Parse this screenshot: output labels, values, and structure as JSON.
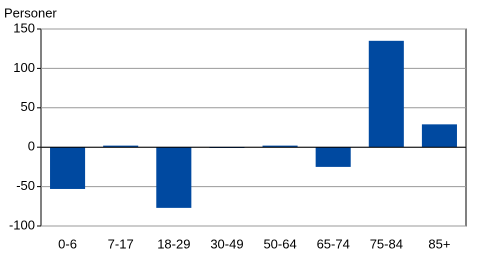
{
  "chart_data": {
    "type": "bar",
    "y_axis_label": "Personer",
    "categories": [
      "0-6",
      "7-17",
      "18-29",
      "30-49",
      "50-64",
      "65-74",
      "75-84",
      "85+"
    ],
    "values": [
      -53,
      2,
      -77,
      -1,
      2,
      -25,
      135,
      29
    ],
    "color": "#0049a0",
    "ylim": [
      -100,
      150
    ],
    "yticks": [
      -100,
      -50,
      0,
      50,
      100,
      150
    ],
    "grid": true
  }
}
